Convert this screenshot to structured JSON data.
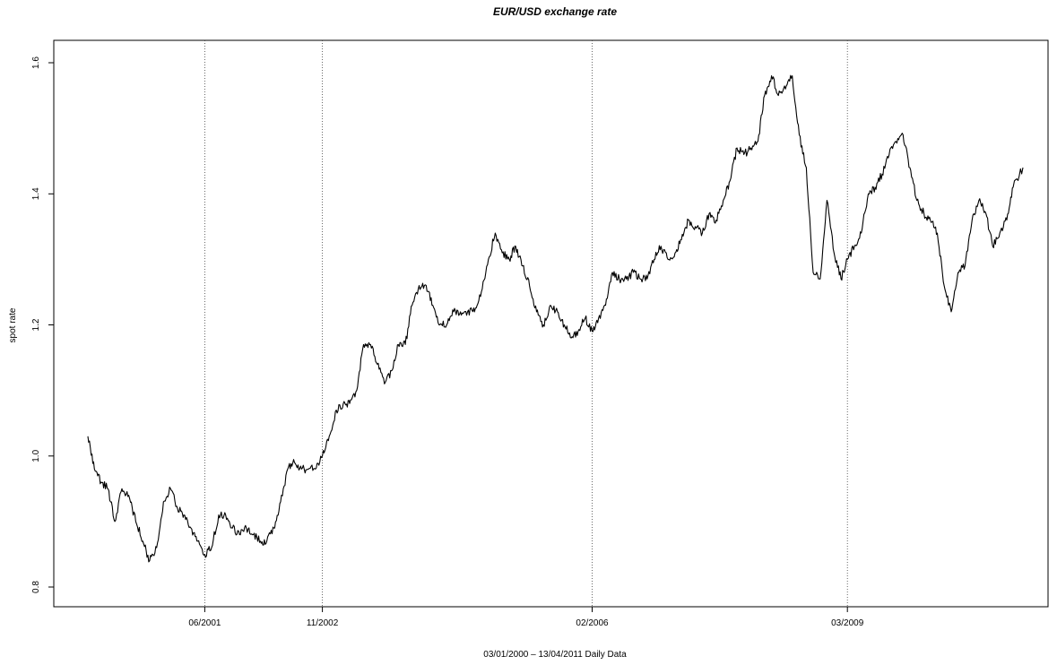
{
  "chart_data": {
    "type": "line",
    "title": "EUR/USD exchange rate",
    "xlabel": "03/01/2000 – 13/04/2011 Daily Data",
    "ylabel": "spot rate",
    "ylim": [
      0.8,
      1.6
    ],
    "y_ticks": [
      0.8,
      1.0,
      1.2,
      1.4,
      1.6
    ],
    "y_tick_labels": [
      "0.8",
      "1.0",
      "1.2",
      "1.4",
      "1.6"
    ],
    "x_range": [
      "2000-01-03",
      "2011-04-13"
    ],
    "x_ticks": [
      {
        "date": "2001-06-01",
        "label": "06/2001"
      },
      {
        "date": "2002-11-01",
        "label": "11/2002"
      },
      {
        "date": "2006-02-01",
        "label": "02/2006"
      },
      {
        "date": "2009-03-01",
        "label": "03/2009"
      }
    ],
    "vertical_lines": [
      "2001-06-01",
      "2002-11-01",
      "2006-02-01",
      "2009-03-01"
    ],
    "grid": false,
    "legend": "none",
    "line_color": "#000000",
    "series": [
      {
        "x": [
          "2000-01-03",
          "2000-02-01",
          "2000-03-01",
          "2000-04-01",
          "2000-05-01",
          "2000-06-01",
          "2000-07-01",
          "2000-08-01",
          "2000-09-01",
          "2000-10-01",
          "2000-11-01",
          "2000-12-01",
          "2001-01-01",
          "2001-02-01",
          "2001-03-01",
          "2001-04-01",
          "2001-05-01",
          "2001-06-01",
          "2001-07-01",
          "2001-08-01",
          "2001-09-01",
          "2001-10-01",
          "2001-11-01",
          "2001-12-01",
          "2002-01-01",
          "2002-02-01",
          "2002-03-01",
          "2002-04-01",
          "2002-05-01",
          "2002-06-01",
          "2002-07-01",
          "2002-08-01",
          "2002-09-01",
          "2002-10-01",
          "2002-11-01",
          "2002-12-01",
          "2003-01-01",
          "2003-02-01",
          "2003-03-01",
          "2003-04-01",
          "2003-05-01",
          "2003-06-01",
          "2003-07-01",
          "2003-08-01",
          "2003-09-01",
          "2003-10-01",
          "2003-11-01",
          "2003-12-01",
          "2004-01-01",
          "2004-02-01",
          "2004-03-01",
          "2004-04-01",
          "2004-05-01",
          "2004-06-01",
          "2004-07-01",
          "2004-08-01",
          "2004-09-01",
          "2004-10-01",
          "2004-11-01",
          "2004-12-01",
          "2005-01-01",
          "2005-02-01",
          "2005-03-01",
          "2005-04-01",
          "2005-05-01",
          "2005-06-01",
          "2005-07-01",
          "2005-08-01",
          "2005-09-01",
          "2005-10-01",
          "2005-11-01",
          "2005-12-01",
          "2006-01-01",
          "2006-02-01",
          "2006-03-01",
          "2006-04-01",
          "2006-05-01",
          "2006-06-01",
          "2006-07-01",
          "2006-08-01",
          "2006-09-01",
          "2006-10-01",
          "2006-11-01",
          "2006-12-01",
          "2007-01-01",
          "2007-02-01",
          "2007-03-01",
          "2007-04-01",
          "2007-05-01",
          "2007-06-01",
          "2007-07-01",
          "2007-08-01",
          "2007-09-01",
          "2007-10-01",
          "2007-11-01",
          "2007-12-01",
          "2008-01-01",
          "2008-02-01",
          "2008-03-01",
          "2008-04-01",
          "2008-05-01",
          "2008-06-01",
          "2008-07-01",
          "2008-08-01",
          "2008-09-01",
          "2008-10-01",
          "2008-11-01",
          "2008-12-01",
          "2009-01-01",
          "2009-02-01",
          "2009-03-01",
          "2009-04-01",
          "2009-05-01",
          "2009-06-01",
          "2009-07-01",
          "2009-08-01",
          "2009-09-01",
          "2009-10-01",
          "2009-11-01",
          "2009-12-01",
          "2010-01-01",
          "2010-02-01",
          "2010-03-01",
          "2010-04-01",
          "2010-05-01",
          "2010-06-01",
          "2010-07-01",
          "2010-08-01",
          "2010-09-01",
          "2010-10-01",
          "2010-11-01",
          "2010-12-01",
          "2011-01-01",
          "2011-02-01",
          "2011-03-01",
          "2011-04-13"
        ],
        "y": [
          1.03,
          0.98,
          0.96,
          0.95,
          0.9,
          0.95,
          0.94,
          0.9,
          0.87,
          0.84,
          0.86,
          0.93,
          0.95,
          0.92,
          0.91,
          0.89,
          0.87,
          0.85,
          0.86,
          0.91,
          0.91,
          0.89,
          0.88,
          0.89,
          0.88,
          0.87,
          0.87,
          0.89,
          0.93,
          0.98,
          0.99,
          0.98,
          0.98,
          0.98,
          1.0,
          1.03,
          1.07,
          1.08,
          1.08,
          1.1,
          1.17,
          1.17,
          1.14,
          1.11,
          1.13,
          1.17,
          1.17,
          1.23,
          1.26,
          1.26,
          1.23,
          1.2,
          1.2,
          1.22,
          1.22,
          1.22,
          1.22,
          1.25,
          1.3,
          1.34,
          1.31,
          1.3,
          1.32,
          1.29,
          1.26,
          1.22,
          1.2,
          1.23,
          1.22,
          1.2,
          1.18,
          1.19,
          1.21,
          1.19,
          1.21,
          1.23,
          1.28,
          1.27,
          1.27,
          1.28,
          1.27,
          1.27,
          1.3,
          1.32,
          1.3,
          1.31,
          1.33,
          1.36,
          1.35,
          1.34,
          1.37,
          1.36,
          1.39,
          1.42,
          1.47,
          1.46,
          1.47,
          1.48,
          1.55,
          1.58,
          1.55,
          1.56,
          1.58,
          1.49,
          1.44,
          1.28,
          1.27,
          1.39,
          1.31,
          1.27,
          1.3,
          1.32,
          1.34,
          1.4,
          1.41,
          1.43,
          1.46,
          1.48,
          1.49,
          1.44,
          1.39,
          1.37,
          1.36,
          1.34,
          1.26,
          1.22,
          1.28,
          1.29,
          1.36,
          1.39,
          1.37,
          1.32,
          1.34,
          1.36,
          1.41,
          1.44
        ]
      }
    ]
  }
}
